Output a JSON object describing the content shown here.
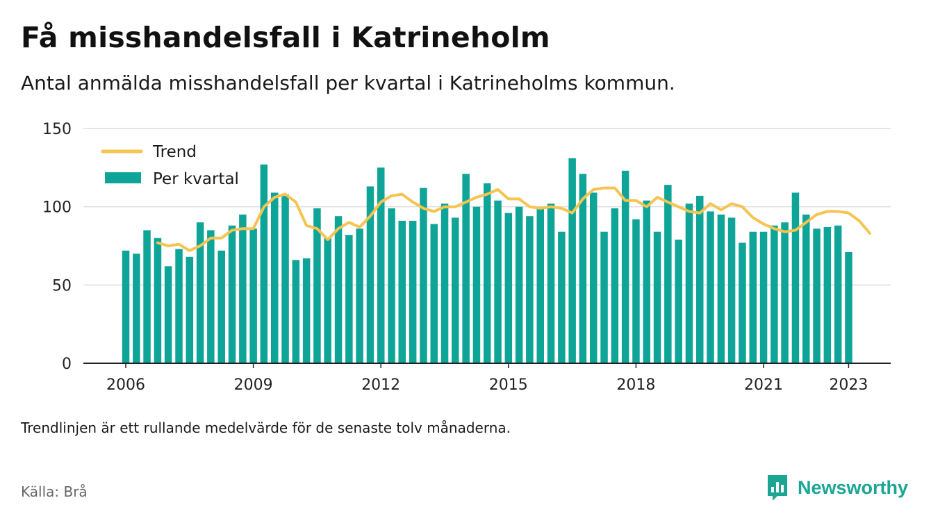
{
  "title": "Få misshandelsfall i Katrineholm",
  "subtitle": "Antal anmälda misshandelsfall per kvartal i Katrineholms kommun.",
  "note": "Trendlinjen är ett rullande medelvärde för de senaste tolv månaderna.",
  "source": "Källa: Brå",
  "brand": {
    "name": "Newsworthy",
    "icon": "newsworthy-logo-icon"
  },
  "colors": {
    "bar": "#0ea598",
    "trend": "#f5c451",
    "brand": "#1aa692",
    "grid": "#dddddd",
    "axis": "#222222"
  },
  "chart_data": {
    "type": "bar",
    "x_start_year": 2006,
    "x_ticks": [
      "2006",
      "2009",
      "2012",
      "2015",
      "2018",
      "2021",
      "2023"
    ],
    "ylim": [
      0,
      150
    ],
    "yticks": [
      0,
      50,
      100,
      150
    ],
    "legend": {
      "position": "top-left",
      "entries": [
        "Trend",
        "Per kvartal"
      ]
    },
    "grid": true,
    "series": [
      {
        "name": "Per kvartal",
        "type": "bar",
        "values": [
          72,
          70,
          85,
          80,
          62,
          73,
          68,
          90,
          85,
          72,
          88,
          95,
          86,
          127,
          109,
          108,
          66,
          67,
          99,
          80,
          94,
          82,
          86,
          113,
          125,
          99,
          91,
          91,
          112,
          89,
          102,
          93,
          121,
          100,
          115,
          104,
          96,
          100,
          94,
          100,
          102,
          84,
          131,
          121,
          109,
          84,
          99,
          123,
          92,
          104,
          84,
          114,
          79,
          102,
          107,
          97,
          95,
          93,
          77,
          84,
          84,
          88,
          90,
          109,
          95,
          86,
          87,
          88,
          71
        ]
      },
      {
        "name": "Trend",
        "type": "line",
        "start_index": 3,
        "values": [
          77,
          75,
          76,
          72,
          75,
          80,
          80,
          85,
          86,
          86,
          100,
          106,
          108,
          103,
          88,
          86,
          79,
          86,
          90,
          87,
          94,
          103,
          107,
          108,
          103,
          99,
          97,
          100,
          100,
          103,
          106,
          108,
          111,
          105,
          105,
          100,
          99,
          100,
          99,
          96,
          105,
          111,
          112,
          112,
          104,
          104,
          100,
          106,
          103,
          100,
          97,
          96,
          102,
          98,
          102,
          100,
          93,
          89,
          86,
          84,
          85,
          90,
          95,
          97,
          97,
          96,
          91,
          83
        ]
      }
    ]
  }
}
